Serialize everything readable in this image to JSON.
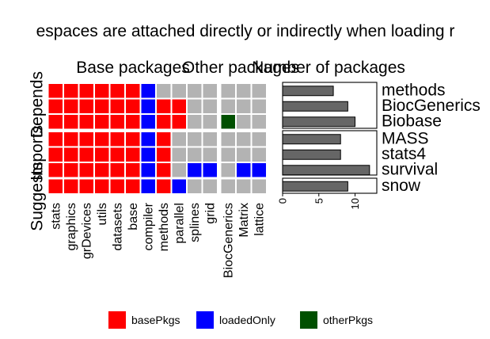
{
  "title": "espaces are attached directly or indirectly when loading r",
  "colors": {
    "basePkgs": "#ff0000",
    "loadedOnly": "#0000ff",
    "otherPkgs": "#005000",
    "missing": "#b3b3b3",
    "bar_fill": "#666666"
  },
  "chart_data": [
    {
      "type": "heatmap",
      "facet_columns": [
        "Base packages",
        "Other packages",
        "Number of packages"
      ],
      "row_groups": [
        "Depends",
        "Imports",
        "Suggests"
      ],
      "x_base": [
        "stats",
        "graphics",
        "grDevices",
        "utils",
        "datasets",
        "base",
        "compiler",
        "methods",
        "parallel",
        "splines",
        "grid"
      ],
      "x_other": [
        "BiocGenerics",
        "Matrix",
        "lattice"
      ],
      "rows": [
        {
          "group": "Depends",
          "package": "methods",
          "base": [
            "basePkgs",
            "basePkgs",
            "basePkgs",
            "basePkgs",
            "basePkgs",
            "basePkgs",
            "loadedOnly",
            "missing",
            "missing",
            "missing",
            "missing"
          ],
          "other": [
            "missing",
            "missing",
            "missing"
          ]
        },
        {
          "group": "Depends",
          "package": "BiocGenerics",
          "base": [
            "basePkgs",
            "basePkgs",
            "basePkgs",
            "basePkgs",
            "basePkgs",
            "basePkgs",
            "loadedOnly",
            "basePkgs",
            "basePkgs",
            "missing",
            "missing"
          ],
          "other": [
            "missing",
            "missing",
            "missing"
          ]
        },
        {
          "group": "Depends",
          "package": "Biobase",
          "base": [
            "basePkgs",
            "basePkgs",
            "basePkgs",
            "basePkgs",
            "basePkgs",
            "basePkgs",
            "loadedOnly",
            "basePkgs",
            "basePkgs",
            "missing",
            "missing"
          ],
          "other": [
            "otherPkgs",
            "missing",
            "missing"
          ]
        },
        {
          "group": "Imports",
          "package": "MASS",
          "base": [
            "basePkgs",
            "basePkgs",
            "basePkgs",
            "basePkgs",
            "basePkgs",
            "basePkgs",
            "loadedOnly",
            "basePkgs",
            "missing",
            "missing",
            "missing"
          ],
          "other": [
            "missing",
            "missing",
            "missing"
          ]
        },
        {
          "group": "Imports",
          "package": "stats4",
          "base": [
            "basePkgs",
            "basePkgs",
            "basePkgs",
            "basePkgs",
            "basePkgs",
            "basePkgs",
            "loadedOnly",
            "basePkgs",
            "missing",
            "missing",
            "missing"
          ],
          "other": [
            "missing",
            "missing",
            "missing"
          ]
        },
        {
          "group": "Imports",
          "package": "survival",
          "base": [
            "basePkgs",
            "basePkgs",
            "basePkgs",
            "basePkgs",
            "basePkgs",
            "basePkgs",
            "loadedOnly",
            "basePkgs",
            "missing",
            "loadedOnly",
            "loadedOnly"
          ],
          "other": [
            "missing",
            "loadedOnly",
            "loadedOnly"
          ]
        },
        {
          "group": "Suggests",
          "package": "snow",
          "base": [
            "basePkgs",
            "basePkgs",
            "basePkgs",
            "basePkgs",
            "basePkgs",
            "basePkgs",
            "loadedOnly",
            "basePkgs",
            "loadedOnly",
            "missing",
            "missing"
          ],
          "other": [
            "missing",
            "missing",
            "missing"
          ]
        }
      ],
      "legend": {
        "position": "bottom",
        "entries": [
          "basePkgs",
          "loadedOnly",
          "otherPkgs"
        ]
      }
    },
    {
      "type": "bar",
      "orientation": "horizontal",
      "title": "Number of packages",
      "categories": [
        "methods",
        "BiocGenerics",
        "Biobase",
        "MASS",
        "stats4",
        "survival",
        "snow"
      ],
      "values": [
        7,
        9,
        10,
        8,
        8,
        12,
        9
      ],
      "xlim": [
        0,
        13
      ],
      "ticks": [
        "0",
        "5",
        "10"
      ]
    }
  ]
}
